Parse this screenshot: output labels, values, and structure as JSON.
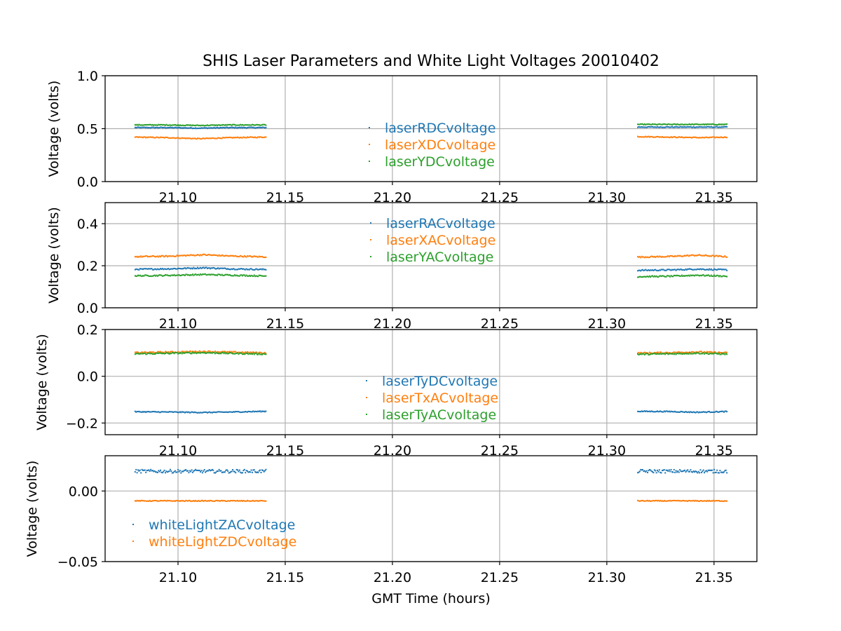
{
  "title": "SHIS Laser Parameters and White Light Voltages 20010402",
  "colors": {
    "blue": "#1f77b4",
    "orange": "#ff7f0e",
    "green": "#2ca02c",
    "grid": "#b0b0b0"
  },
  "chart_data": [
    {
      "type": "scatter",
      "ylabel": "Voltage (volts)",
      "xlabel": "",
      "xlim": [
        21.066,
        21.37
      ],
      "ylim": [
        0.0,
        1.0
      ],
      "xticks": [
        "21.10",
        "21.15",
        "21.20",
        "21.25",
        "21.30",
        "21.35"
      ],
      "yticks": [
        "0.0",
        "0.5",
        "1.0"
      ],
      "grid": true,
      "legend_position": "center",
      "segments": [
        [
          21.08,
          21.141
        ],
        [
          21.314,
          21.356
        ]
      ],
      "series": [
        {
          "name": "laserRDCvoltage",
          "color": "#1f77b4",
          "x": [
            21.08,
            21.095,
            21.11,
            21.125,
            21.141,
            21.314,
            21.33,
            21.345,
            21.356
          ],
          "y": [
            0.51,
            0.51,
            0.505,
            0.51,
            0.51,
            0.515,
            0.515,
            0.515,
            0.515
          ],
          "noise": 0.004
        },
        {
          "name": "laserXDCvoltage",
          "color": "#ff7f0e",
          "x": [
            21.08,
            21.095,
            21.11,
            21.125,
            21.141,
            21.314,
            21.33,
            21.345,
            21.356
          ],
          "y": [
            0.42,
            0.415,
            0.405,
            0.415,
            0.42,
            0.425,
            0.42,
            0.415,
            0.42
          ],
          "noise": 0.004
        },
        {
          "name": "laserYDCvoltage",
          "color": "#2ca02c",
          "x": [
            21.08,
            21.095,
            21.11,
            21.125,
            21.141,
            21.314,
            21.33,
            21.345,
            21.356
          ],
          "y": [
            0.535,
            0.535,
            0.53,
            0.535,
            0.535,
            0.54,
            0.54,
            0.54,
            0.54
          ],
          "noise": 0.004
        }
      ]
    },
    {
      "type": "scatter",
      "ylabel": "Voltage (volts)",
      "xlabel": "",
      "xlim": [
        21.066,
        21.37
      ],
      "ylim": [
        0.0,
        0.5
      ],
      "xticks": [
        "21.10",
        "21.15",
        "21.20",
        "21.25",
        "21.30",
        "21.35"
      ],
      "yticks": [
        "0.0",
        "0.2",
        "0.4"
      ],
      "grid": true,
      "legend_position": "upper center",
      "segments": [
        [
          21.08,
          21.141
        ],
        [
          21.314,
          21.356
        ]
      ],
      "series": [
        {
          "name": "laserRACvoltage",
          "color": "#1f77b4",
          "x": [
            21.08,
            21.095,
            21.112,
            21.125,
            21.141,
            21.314,
            21.33,
            21.342,
            21.356
          ],
          "y": [
            0.183,
            0.185,
            0.19,
            0.185,
            0.182,
            0.178,
            0.18,
            0.184,
            0.18
          ],
          "noise": 0.003
        },
        {
          "name": "laserXACvoltage",
          "color": "#ff7f0e",
          "x": [
            21.08,
            21.095,
            21.112,
            21.125,
            21.141,
            21.314,
            21.33,
            21.342,
            21.356
          ],
          "y": [
            0.243,
            0.245,
            0.252,
            0.246,
            0.242,
            0.241,
            0.244,
            0.25,
            0.243
          ],
          "noise": 0.003
        },
        {
          "name": "laserYACvoltage",
          "color": "#2ca02c",
          "x": [
            21.08,
            21.095,
            21.112,
            21.125,
            21.141,
            21.314,
            21.33,
            21.342,
            21.356
          ],
          "y": [
            0.152,
            0.154,
            0.158,
            0.155,
            0.151,
            0.148,
            0.15,
            0.155,
            0.15
          ],
          "noise": 0.003
        }
      ]
    },
    {
      "type": "scatter",
      "ylabel": "Voltage (volts)",
      "xlabel": "",
      "xlim": [
        21.066,
        21.37
      ],
      "ylim": [
        -0.25,
        0.2
      ],
      "xticks": [
        "21.10",
        "21.15",
        "21.20",
        "21.25",
        "21.30",
        "21.35"
      ],
      "yticks": [
        "−0.2",
        "0.0",
        "0.2"
      ],
      "ytick_values": [
        -0.2,
        0.0,
        0.2
      ],
      "grid": true,
      "legend_position": "lower center",
      "segments": [
        [
          21.08,
          21.141
        ],
        [
          21.314,
          21.356
        ]
      ],
      "series": [
        {
          "name": "laserTyDCvoltage",
          "color": "#1f77b4",
          "x": [
            21.08,
            21.095,
            21.112,
            21.125,
            21.141,
            21.314,
            21.33,
            21.342,
            21.356
          ],
          "y": [
            -0.152,
            -0.153,
            -0.155,
            -0.153,
            -0.15,
            -0.15,
            -0.151,
            -0.154,
            -0.151
          ],
          "noise": 0.002
        },
        {
          "name": "laserTxACvoltage",
          "color": "#ff7f0e",
          "x": [
            21.08,
            21.095,
            21.112,
            21.125,
            21.141,
            21.314,
            21.33,
            21.342,
            21.356
          ],
          "y": [
            0.101,
            0.103,
            0.106,
            0.103,
            0.1,
            0.099,
            0.101,
            0.104,
            0.1
          ],
          "noise": 0.003
        },
        {
          "name": "laserTyACvoltage",
          "color": "#2ca02c",
          "x": [
            21.08,
            21.095,
            21.112,
            21.125,
            21.141,
            21.314,
            21.33,
            21.342,
            21.356
          ],
          "y": [
            0.096,
            0.098,
            0.101,
            0.098,
            0.095,
            0.094,
            0.096,
            0.099,
            0.095
          ],
          "noise": 0.003
        }
      ]
    },
    {
      "type": "scatter",
      "ylabel": "Voltage (volts)",
      "xlabel": "GMT Time (hours)",
      "xlim": [
        21.066,
        21.37
      ],
      "ylim": [
        -0.05,
        0.025
      ],
      "xticks": [
        "21.10",
        "21.15",
        "21.20",
        "21.25",
        "21.30",
        "21.35"
      ],
      "yticks": [
        "−0.05",
        "0.00"
      ],
      "ytick_values": [
        -0.05,
        0.0
      ],
      "grid": true,
      "legend_position": "lower left",
      "segments": [
        [
          21.08,
          21.141
        ],
        [
          21.314,
          21.356
        ]
      ],
      "series": [
        {
          "name": "whiteLightZACvoltage",
          "color": "#1f77b4",
          "x": [
            21.08,
            21.1,
            21.12,
            21.141,
            21.314,
            21.335,
            21.356
          ],
          "y": [
            0.014,
            0.014,
            0.014,
            0.014,
            0.014,
            0.014,
            0.014
          ],
          "noise": 0.0012
        },
        {
          "name": "whiteLightZDCvoltage",
          "color": "#ff7f0e",
          "x": [
            21.08,
            21.1,
            21.12,
            21.141,
            21.314,
            21.335,
            21.356
          ],
          "y": [
            -0.007,
            -0.007,
            -0.007,
            -0.007,
            -0.007,
            -0.007,
            -0.007
          ],
          "noise": 0.0003
        }
      ]
    }
  ]
}
